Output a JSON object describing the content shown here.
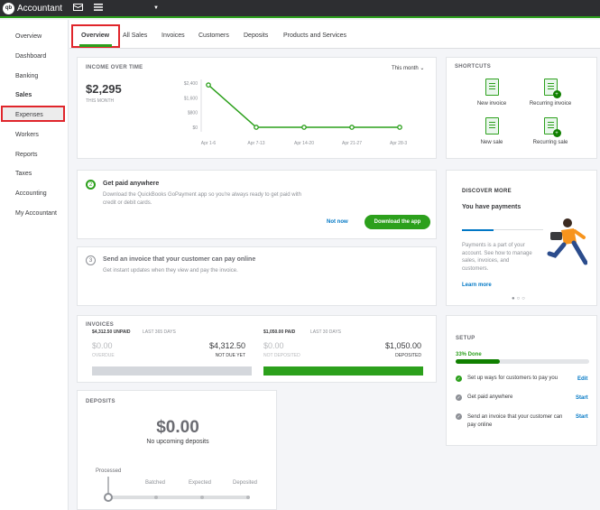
{
  "topbar": {
    "logo": "qb",
    "app_title": "Accountant",
    "icons": [
      "briefcase-icon",
      "menu-icon",
      "caret-down-icon"
    ]
  },
  "sidebar": {
    "items": [
      {
        "label": "Overview"
      },
      {
        "label": "Dashboard"
      },
      {
        "label": "Banking"
      },
      {
        "label": "Sales"
      },
      {
        "label": "Expenses"
      },
      {
        "label": "Workers"
      },
      {
        "label": "Reports"
      },
      {
        "label": "Taxes"
      },
      {
        "label": "Accounting"
      },
      {
        "label": "My Accountant"
      }
    ],
    "active": "Sales"
  },
  "tabs": [
    {
      "label": "Overview"
    },
    {
      "label": "All Sales"
    },
    {
      "label": "Invoices"
    },
    {
      "label": "Customers"
    },
    {
      "label": "Deposits"
    },
    {
      "label": "Products and Services"
    }
  ],
  "income": {
    "title": "INCOME OVER TIME",
    "period": "This month",
    "amount": "$2,295",
    "amount_label": "THIS MONTH",
    "chart_data": {
      "type": "line",
      "categories": [
        "Apr 1-6",
        "Apr 7-13",
        "Apr 14-20",
        "Apr 21-27",
        "Apr 28-30"
      ],
      "values": [
        2295,
        0,
        0,
        0,
        0
      ],
      "yticks": [
        "$2,400",
        "$1,600",
        "$800",
        "$0"
      ],
      "ylim": [
        0,
        2400
      ],
      "color": "#2ca01c"
    }
  },
  "get_paid": {
    "step": "2",
    "title": "Get paid anywhere",
    "desc": "Download the QuickBooks GoPayment app so you're always ready to get paid with credit or debit cards.",
    "not_now": "Not now",
    "button": "Download the app"
  },
  "send_invoice": {
    "step": "3",
    "title": "Send an invoice that your customer can pay online",
    "desc": "Get instant updates when they view and pay the invoice."
  },
  "invoices": {
    "title": "INVOICES",
    "unpaid_label": "$4,312.50 UNPAID",
    "unpaid_period": "LAST 365 DAYS",
    "paid_label": "$1,050.00 PAID",
    "paid_period": "LAST 30 DAYS",
    "overdue_value": "$0.00",
    "overdue_label": "OVERDUE",
    "not_due_value": "$4,312.50",
    "not_due_label": "NOT DUE YET",
    "not_deposited_value": "$0.00",
    "not_deposited_label": "NOT DEPOSITED",
    "deposited_value": "$1,050.00",
    "deposited_label": "DEPOSITED"
  },
  "deposits": {
    "title": "DEPOSITS",
    "amount": "$0.00",
    "subtitle": "No upcoming deposits",
    "steps": [
      "Processed",
      "Batched",
      "Expected",
      "Deposited"
    ]
  },
  "shortcuts": {
    "title": "SHORTCUTS",
    "items": [
      {
        "label": "New invoice",
        "icon": "invoice-icon"
      },
      {
        "label": "Recurring invoice",
        "icon": "recurring-invoice-icon"
      },
      {
        "label": "New sale",
        "icon": "sale-receipt-icon"
      },
      {
        "label": "Recurring sale",
        "icon": "recurring-sale-icon"
      }
    ]
  },
  "discover": {
    "title": "DISCOVER MORE",
    "heading": "You have payments",
    "desc": "Payments is a part of your account. See how to manage sales, invoices, and customers.",
    "link": "Learn more"
  },
  "setup": {
    "title": "SETUP",
    "progress_label": "33% Done",
    "progress": 0.33,
    "items": [
      {
        "label": "Set up ways for customers to pay you",
        "action": "Edit",
        "done": true
      },
      {
        "label": "Get paid anywhere",
        "action": "Start",
        "done": false
      },
      {
        "label": "Send an invoice that your customer can pay online",
        "action": "Start",
        "done": false
      }
    ]
  }
}
